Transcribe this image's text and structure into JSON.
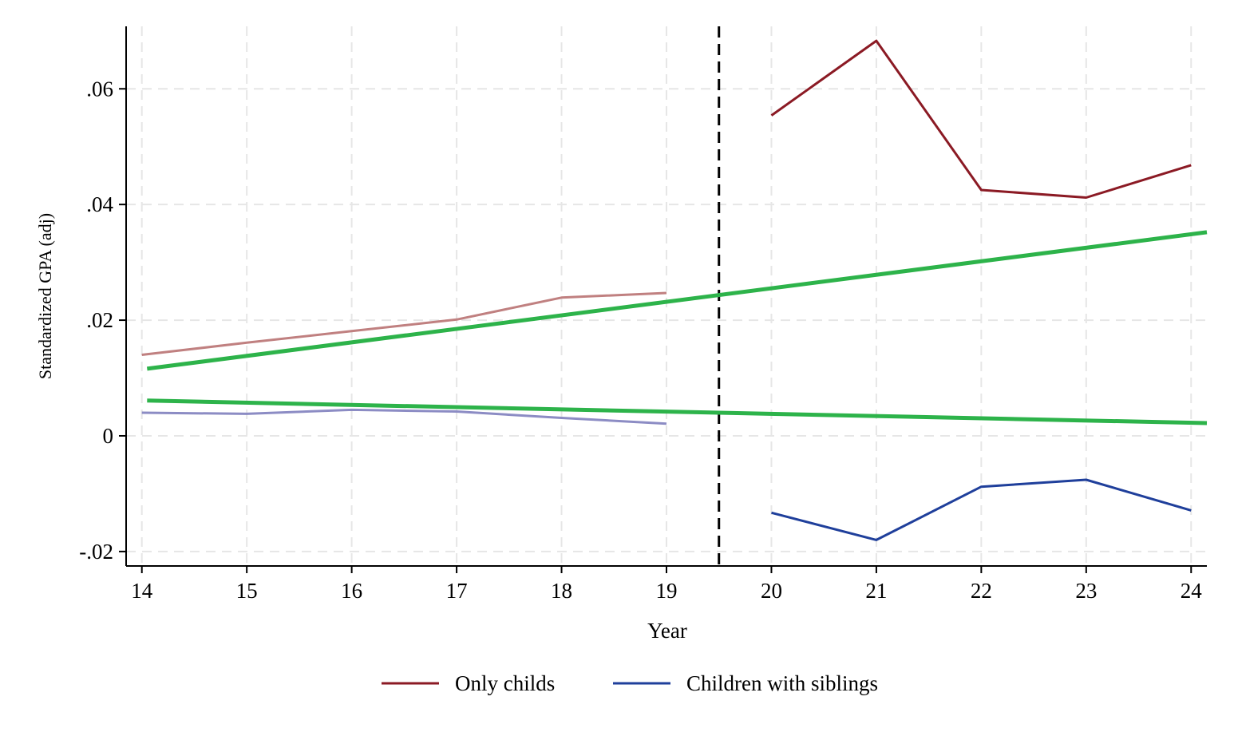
{
  "chart_data": {
    "type": "line",
    "title": "",
    "xlabel": "Year",
    "ylabel": "Standardized GPA (adj)",
    "x_ticks": [
      "14",
      "15",
      "16",
      "17",
      "18",
      "19",
      "20",
      "21",
      "22",
      "23",
      "24"
    ],
    "y_ticks": [
      {
        "value": -0.02,
        "label": "-.02"
      },
      {
        "value": 0,
        "label": "0"
      },
      {
        "value": 0.02,
        "label": ".02"
      },
      {
        "value": 0.04,
        "label": ".04"
      },
      {
        "value": 0.06,
        "label": ".06"
      }
    ],
    "xlim": [
      13.85,
      24.15
    ],
    "ylim": [
      -0.0225,
      0.0708
    ],
    "grid": true,
    "cutoff_x": 19.5,
    "legend_position": "bottom",
    "series": [
      {
        "name": "Only childs",
        "color": "#8b1a24",
        "x": [
          20,
          21,
          22,
          23,
          24
        ],
        "y": [
          0.0554,
          0.0683,
          0.0425,
          0.0412,
          0.0468
        ]
      },
      {
        "name": "Children with siblings",
        "color": "#1f3f9b",
        "x": [
          20,
          21,
          22,
          23,
          24
        ],
        "y": [
          -0.0133,
          -0.018,
          -0.0088,
          -0.0076,
          -0.0129
        ]
      }
    ],
    "pre_period_series": [
      {
        "color": "#c08080",
        "x": [
          14,
          15,
          16,
          17,
          18,
          19
        ],
        "y": [
          0.014,
          0.0161,
          0.0181,
          0.0201,
          0.0239,
          0.0247
        ]
      },
      {
        "color": "#8c8cc4",
        "x": [
          14,
          15,
          16,
          17,
          18,
          19
        ],
        "y": [
          0.004,
          0.0038,
          0.0045,
          0.0042,
          0.0031,
          0.0021
        ]
      }
    ],
    "trend_lines": [
      {
        "color": "#2db34a",
        "x": [
          14.05,
          24.15
        ],
        "y": [
          0.0116,
          0.0352
        ]
      },
      {
        "color": "#2db34a",
        "x": [
          14.05,
          24.15
        ],
        "y": [
          0.0061,
          0.0022
        ]
      }
    ]
  }
}
